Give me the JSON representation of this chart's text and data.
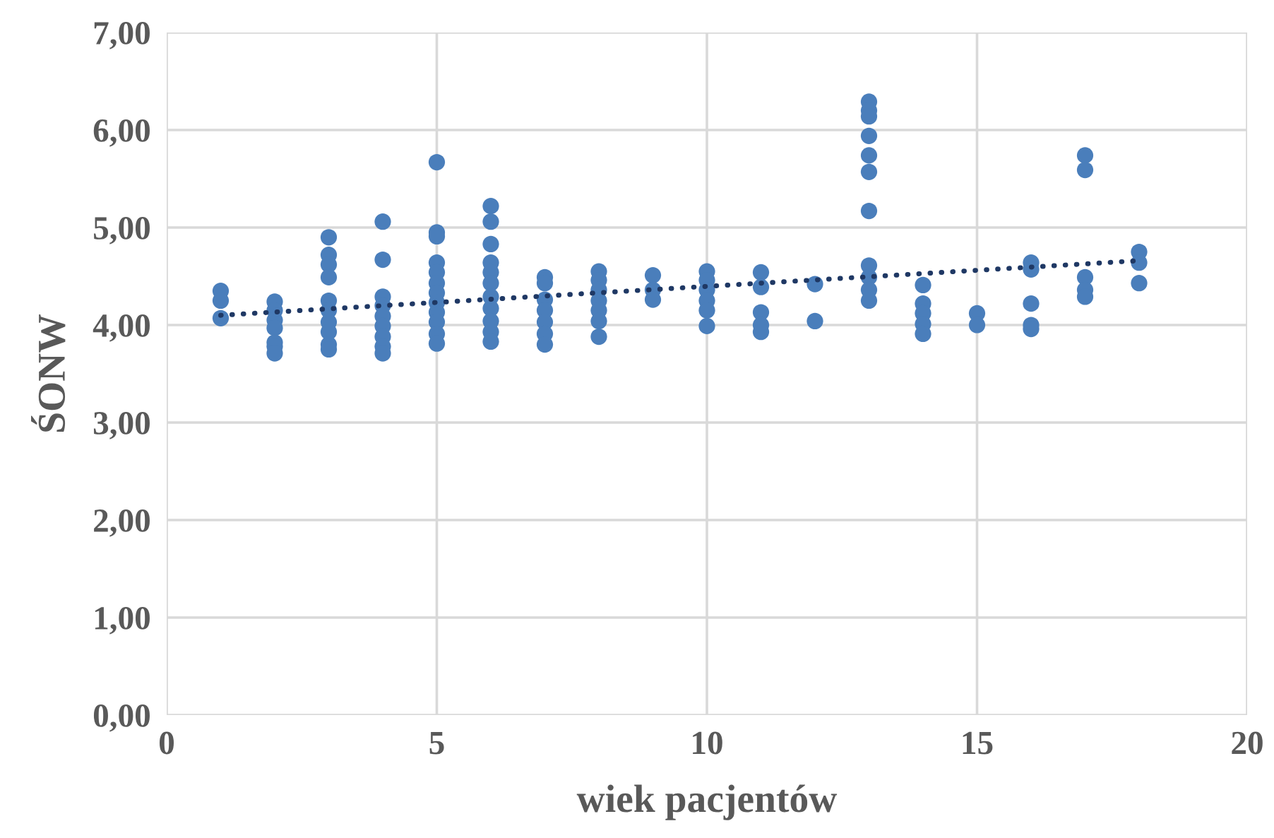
{
  "chart_data": {
    "type": "scatter",
    "xlabel": "wiek pacjentów",
    "ylabel": "ŚONW",
    "xlim": [
      0,
      20
    ],
    "xticks": [
      0,
      5,
      10,
      15,
      20
    ],
    "ylim": [
      0,
      7
    ],
    "yticks": [
      {
        "value": 0,
        "label": "0,00"
      },
      {
        "value": 1,
        "label": "1,00"
      },
      {
        "value": 2,
        "label": "2,00"
      },
      {
        "value": 3,
        "label": "3,00"
      },
      {
        "value": 4,
        "label": "4,00"
      },
      {
        "value": 5,
        "label": "5,00"
      },
      {
        "value": 6,
        "label": "6,00"
      },
      {
        "value": 7,
        "label": "7,00"
      }
    ],
    "grid": true,
    "legend": false,
    "marker": "circle",
    "series": [
      {
        "color": "#4a7ebb",
        "x": [
          1,
          1,
          1,
          2,
          2,
          2,
          2,
          2,
          2,
          2,
          3,
          3,
          3,
          3,
          3,
          3,
          3,
          3,
          3,
          3,
          4,
          4,
          4,
          4,
          4,
          4,
          4,
          4,
          4,
          5,
          5,
          5,
          5,
          5,
          5,
          5,
          5,
          5,
          5,
          5,
          5,
          6,
          6,
          6,
          6,
          6,
          6,
          6,
          6,
          6,
          6,
          6,
          7,
          7,
          7,
          7,
          7,
          7,
          7,
          8,
          8,
          8,
          8,
          8,
          8,
          8,
          9,
          9,
          9,
          10,
          10,
          10,
          10,
          10,
          10,
          11,
          11,
          11,
          11,
          11,
          12,
          12,
          13,
          13,
          13,
          13,
          13,
          13,
          13,
          13,
          13,
          13,
          13,
          14,
          14,
          14,
          14,
          14,
          15,
          15,
          16,
          16,
          16,
          16,
          16,
          17,
          17,
          17,
          17,
          17,
          18,
          18,
          18
        ],
        "values": [
          4.35,
          4.25,
          4.07,
          4.24,
          4.15,
          4.05,
          3.97,
          3.82,
          3.78,
          3.71,
          4.9,
          4.72,
          4.62,
          4.49,
          4.25,
          4.15,
          4.03,
          3.93,
          3.8,
          3.75,
          5.06,
          4.67,
          4.29,
          4.2,
          4.09,
          3.99,
          3.88,
          3.78,
          3.71,
          5.67,
          4.95,
          4.91,
          4.64,
          4.54,
          4.43,
          4.33,
          4.23,
          4.13,
          4.03,
          3.91,
          3.81,
          5.22,
          5.06,
          4.83,
          4.64,
          4.54,
          4.43,
          4.29,
          4.17,
          4.04,
          3.93,
          3.83,
          4.49,
          4.43,
          4.26,
          4.15,
          4.03,
          3.91,
          3.8,
          4.55,
          4.46,
          4.36,
          4.25,
          4.15,
          4.04,
          3.88,
          4.51,
          4.36,
          4.26,
          4.55,
          4.46,
          4.36,
          4.25,
          4.15,
          3.99,
          4.54,
          4.39,
          4.13,
          4.0,
          3.93,
          4.42,
          4.04,
          6.29,
          6.2,
          6.14,
          5.94,
          5.74,
          5.57,
          5.17,
          4.61,
          4.49,
          4.36,
          4.25,
          4.41,
          4.22,
          4.12,
          4.01,
          3.91,
          4.12,
          4.0,
          4.64,
          4.57,
          4.22,
          4.0,
          3.96,
          5.74,
          5.59,
          4.49,
          4.36,
          4.29,
          4.75,
          4.64,
          4.43
        ]
      },
      {
        "type": "line",
        "color": "#1f3864",
        "line_style": "dotted",
        "marker": "none",
        "x": [
          1,
          18
        ],
        "values": [
          4.1,
          4.66
        ]
      }
    ]
  }
}
